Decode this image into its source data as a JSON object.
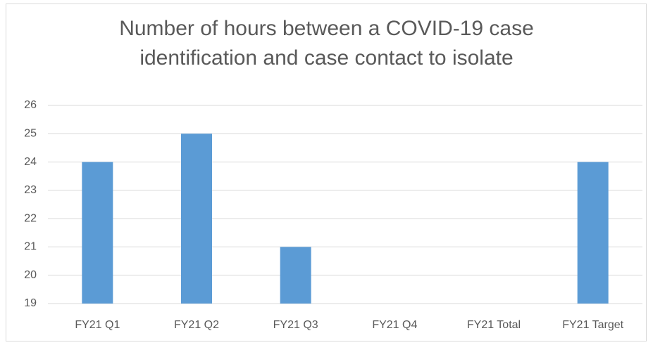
{
  "chart_data": {
    "type": "bar",
    "title": "Number of hours between a COVID-19 case identification and case contact to isolate",
    "categories": [
      "FY21 Q1",
      "FY21 Q2",
      "FY21 Q3",
      "FY21 Q4",
      "FY21 Total",
      "FY21 Target"
    ],
    "values": [
      24,
      25,
      21,
      null,
      null,
      24
    ],
    "color": "#5b9bd5",
    "ylim": [
      19,
      26
    ],
    "yticks": [
      19,
      20,
      21,
      22,
      23,
      24,
      25,
      26
    ],
    "grid": true
  }
}
